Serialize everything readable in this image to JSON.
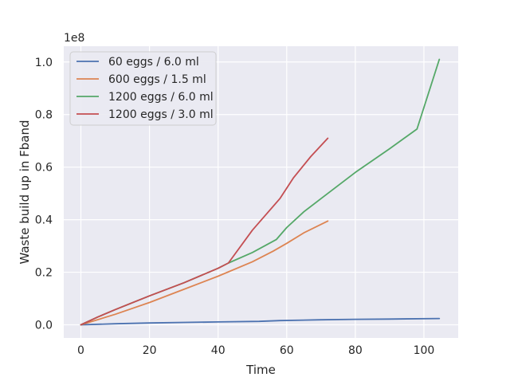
{
  "chart_data": {
    "type": "line",
    "title": "",
    "xlabel": "Time",
    "ylabel": "Waste build up in Fband",
    "y_offset_text": "1e8",
    "xlim": [
      -5,
      110
    ],
    "ylim": [
      -0.05,
      1.06
    ],
    "x_ticks": [
      0,
      20,
      40,
      60,
      80,
      100
    ],
    "y_ticks": [
      0.0,
      0.2,
      0.4,
      0.6,
      0.8,
      1.0
    ],
    "x_tick_labels": [
      "0",
      "20",
      "40",
      "60",
      "80",
      "100"
    ],
    "y_tick_labels": [
      "0.0",
      "0.2",
      "0.4",
      "0.6",
      "0.8",
      "1.0"
    ],
    "grid": true,
    "legend_position": "top-left",
    "series": [
      {
        "name": "60 eggs / 6.0 ml",
        "color": "#4c72b0",
        "x": [
          0,
          10,
          20,
          30,
          40,
          52,
          58,
          70,
          80,
          90,
          104.5
        ],
        "y": [
          0.0,
          0.004,
          0.007,
          0.009,
          0.011,
          0.013,
          0.016,
          0.019,
          0.021,
          0.022,
          0.024
        ]
      },
      {
        "name": "600 eggs / 1.5 ml",
        "color": "#dd8452",
        "x": [
          0,
          10,
          20,
          30,
          40,
          50,
          56,
          60,
          65,
          72
        ],
        "y": [
          0.0,
          0.04,
          0.085,
          0.135,
          0.185,
          0.24,
          0.28,
          0.31,
          0.35,
          0.395
        ]
      },
      {
        "name": "1200 eggs / 6.0 ml",
        "color": "#55a868",
        "x": [
          0,
          5,
          10,
          20,
          30,
          40,
          43,
          50,
          57,
          60,
          65,
          70,
          80,
          90,
          98,
          104.5
        ],
        "y": [
          0.0,
          0.03,
          0.058,
          0.11,
          0.16,
          0.215,
          0.235,
          0.275,
          0.325,
          0.37,
          0.43,
          0.48,
          0.58,
          0.67,
          0.745,
          1.01
        ]
      },
      {
        "name": "1200 eggs / 3.0 ml",
        "color": "#c44e52",
        "x": [
          0,
          5,
          10,
          20,
          30,
          40,
          43,
          50,
          58,
          62,
          67,
          72
        ],
        "y": [
          0.0,
          0.03,
          0.058,
          0.11,
          0.16,
          0.215,
          0.235,
          0.36,
          0.48,
          0.56,
          0.64,
          0.71
        ]
      }
    ]
  }
}
